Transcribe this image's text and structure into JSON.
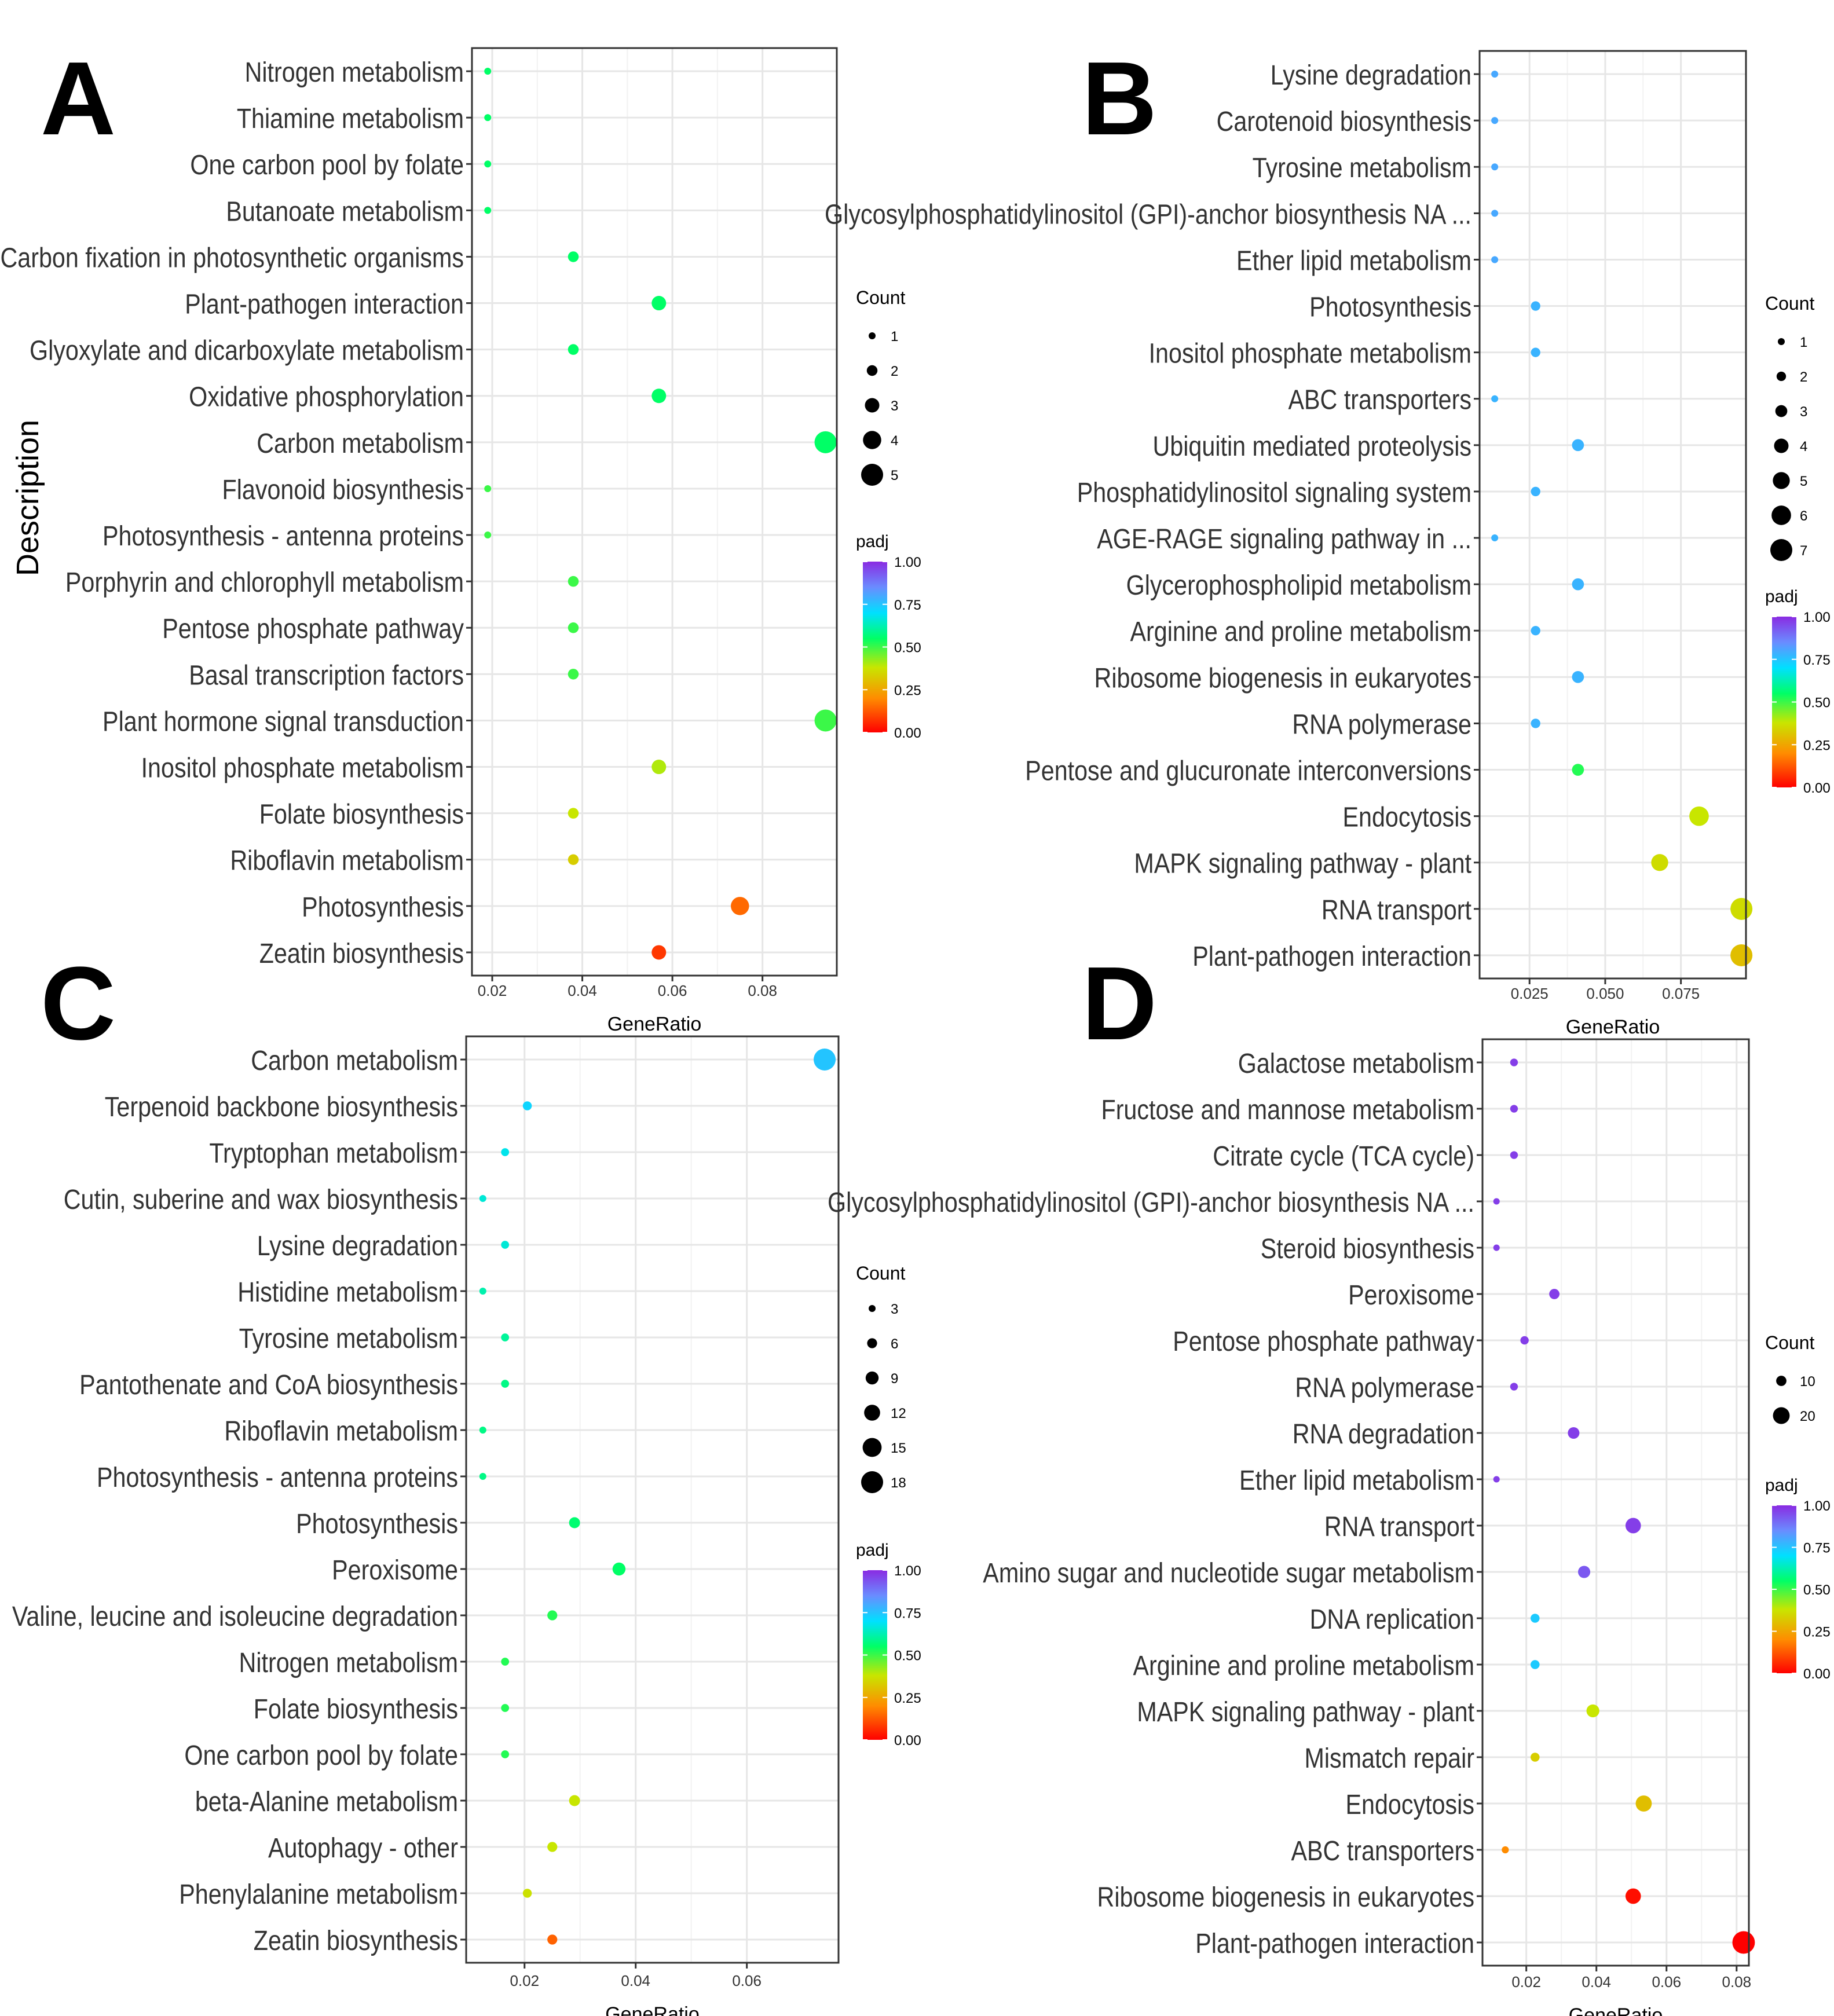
{
  "gradient_colors": [
    "#ff0000",
    "#ff8c00",
    "#c8e600",
    "#00ff66",
    "#00e0ff",
    "#6a8cff",
    "#8a2be2"
  ],
  "ylabel": "Description",
  "chart_data": [
    {
      "panel": "A",
      "type": "scatter",
      "xlabel": "GeneRatio",
      "xlim": [
        0.0155,
        0.0965
      ],
      "xticks": [
        0.02,
        0.04,
        0.06,
        0.08
      ],
      "xtick_labels": [
        "0.02",
        "0.04",
        "0.06",
        "0.08"
      ],
      "count_title": "Count",
      "count_values": [
        1,
        2,
        3,
        4,
        5
      ],
      "count_range": [
        1,
        5
      ],
      "padj_title": "padj",
      "padj_ticks": [
        "1.00",
        "0.75",
        "0.50",
        "0.25",
        "0.00"
      ],
      "points": [
        {
          "term": "Nitrogen metabolism",
          "gene_ratio": 0.019,
          "count": 1,
          "padj": 0.55
        },
        {
          "term": "Thiamine metabolism",
          "gene_ratio": 0.019,
          "count": 1,
          "padj": 0.55
        },
        {
          "term": "One carbon pool by folate",
          "gene_ratio": 0.019,
          "count": 1,
          "padj": 0.55
        },
        {
          "term": "Butanoate metabolism",
          "gene_ratio": 0.019,
          "count": 1,
          "padj": 0.55
        },
        {
          "term": "Carbon fixation in photosynthetic organisms",
          "gene_ratio": 0.038,
          "count": 2,
          "padj": 0.55
        },
        {
          "term": "Plant-pathogen interaction",
          "gene_ratio": 0.057,
          "count": 3,
          "padj": 0.55
        },
        {
          "term": "Glyoxylate and dicarboxylate metabolism",
          "gene_ratio": 0.038,
          "count": 2,
          "padj": 0.55
        },
        {
          "term": "Oxidative phosphorylation",
          "gene_ratio": 0.057,
          "count": 3,
          "padj": 0.55
        },
        {
          "term": "Carbon metabolism",
          "gene_ratio": 0.094,
          "count": 5,
          "padj": 0.55
        },
        {
          "term": "Flavonoid biosynthesis",
          "gene_ratio": 0.019,
          "count": 1,
          "padj": 0.5
        },
        {
          "term": "Photosynthesis - antenna proteins",
          "gene_ratio": 0.019,
          "count": 1,
          "padj": 0.5
        },
        {
          "term": "Porphyrin and chlorophyll metabolism",
          "gene_ratio": 0.038,
          "count": 2,
          "padj": 0.5
        },
        {
          "term": "Pentose phosphate pathway",
          "gene_ratio": 0.038,
          "count": 2,
          "padj": 0.5
        },
        {
          "term": "Basal transcription factors",
          "gene_ratio": 0.038,
          "count": 2,
          "padj": 0.5
        },
        {
          "term": "Plant hormone signal transduction",
          "gene_ratio": 0.094,
          "count": 5,
          "padj": 0.5
        },
        {
          "term": "Inositol phosphate metabolism",
          "gene_ratio": 0.057,
          "count": 3,
          "padj": 0.4
        },
        {
          "term": "Folate biosynthesis",
          "gene_ratio": 0.038,
          "count": 2,
          "padj": 0.38
        },
        {
          "term": "Riboflavin metabolism",
          "gene_ratio": 0.038,
          "count": 2,
          "padj": 0.33
        },
        {
          "term": "Photosynthesis",
          "gene_ratio": 0.075,
          "count": 4,
          "padj": 0.15
        },
        {
          "term": "Zeatin biosynthesis",
          "gene_ratio": 0.057,
          "count": 3,
          "padj": 0.08
        }
      ]
    },
    {
      "panel": "B",
      "type": "scatter",
      "xlabel": "GeneRatio",
      "xlim": [
        0.0085,
        0.0965
      ],
      "xticks": [
        0.025,
        0.05,
        0.075
      ],
      "xtick_labels": [
        "0.025",
        "0.050",
        "0.075"
      ],
      "count_title": "Count",
      "count_values": [
        1,
        2,
        3,
        4,
        5,
        6,
        7
      ],
      "count_range": [
        1,
        7
      ],
      "padj_title": "padj",
      "padj_ticks": [
        "1.00",
        "0.75",
        "0.50",
        "0.25",
        "0.00"
      ],
      "points": [
        {
          "term": "Lysine degradation",
          "gene_ratio": 0.0135,
          "count": 1,
          "padj": 0.8
        },
        {
          "term": "Carotenoid biosynthesis",
          "gene_ratio": 0.0135,
          "count": 1,
          "padj": 0.8
        },
        {
          "term": "Tyrosine metabolism",
          "gene_ratio": 0.0135,
          "count": 1,
          "padj": 0.8
        },
        {
          "term": "Glycosylphosphatidylinositol (GPI)-anchor biosynthesis NA ...",
          "gene_ratio": 0.0135,
          "count": 1,
          "padj": 0.8
        },
        {
          "term": "Ether lipid metabolism",
          "gene_ratio": 0.0135,
          "count": 1,
          "padj": 0.8
        },
        {
          "term": "Photosynthesis",
          "gene_ratio": 0.027,
          "count": 2,
          "padj": 0.78
        },
        {
          "term": "Inositol phosphate metabolism",
          "gene_ratio": 0.027,
          "count": 2,
          "padj": 0.78
        },
        {
          "term": "ABC transporters",
          "gene_ratio": 0.0135,
          "count": 1,
          "padj": 0.78
        },
        {
          "term": "Ubiquitin mediated proteolysis",
          "gene_ratio": 0.041,
          "count": 3,
          "padj": 0.78
        },
        {
          "term": "Phosphatidylinositol signaling system",
          "gene_ratio": 0.027,
          "count": 2,
          "padj": 0.78
        },
        {
          "term": "AGE-RAGE signaling pathway in ...",
          "gene_ratio": 0.0135,
          "count": 1,
          "padj": 0.78
        },
        {
          "term": "Glycerophospholipid metabolism",
          "gene_ratio": 0.041,
          "count": 3,
          "padj": 0.78
        },
        {
          "term": "Arginine and proline metabolism",
          "gene_ratio": 0.027,
          "count": 2,
          "padj": 0.78
        },
        {
          "term": "Ribosome biogenesis in eukaryotes",
          "gene_ratio": 0.041,
          "count": 3,
          "padj": 0.78
        },
        {
          "term": "RNA polymerase",
          "gene_ratio": 0.027,
          "count": 2,
          "padj": 0.78
        },
        {
          "term": "Pentose and glucuronate interconversions",
          "gene_ratio": 0.041,
          "count": 3,
          "padj": 0.52
        },
        {
          "term": "Endocytosis",
          "gene_ratio": 0.081,
          "count": 6,
          "padj": 0.38
        },
        {
          "term": "MAPK signaling pathway - plant",
          "gene_ratio": 0.068,
          "count": 5,
          "padj": 0.36
        },
        {
          "term": "RNA transport",
          "gene_ratio": 0.095,
          "count": 7,
          "padj": 0.36
        },
        {
          "term": "Plant-pathogen interaction",
          "gene_ratio": 0.095,
          "count": 7,
          "padj": 0.3
        }
      ]
    },
    {
      "panel": "C",
      "type": "scatter",
      "xlabel": "GeneRatio",
      "xlim": [
        0.0095,
        0.0765
      ],
      "xticks": [
        0.02,
        0.04,
        0.06
      ],
      "xtick_labels": [
        "0.02",
        "0.04",
        "0.06"
      ],
      "count_title": "Count",
      "count_values": [
        3,
        6,
        9,
        12,
        15,
        18
      ],
      "count_range": [
        3,
        18
      ],
      "padj_title": "padj",
      "padj_ticks": [
        "1.00",
        "0.75",
        "0.50",
        "0.25",
        "0.00"
      ],
      "points": [
        {
          "term": "Carbon metabolism",
          "gene_ratio": 0.074,
          "count": 18,
          "padj": 0.75
        },
        {
          "term": "Terpenoid backbone biosynthesis",
          "gene_ratio": 0.0205,
          "count": 5,
          "padj": 0.72
        },
        {
          "term": "Tryptophan metabolism",
          "gene_ratio": 0.0165,
          "count": 4,
          "padj": 0.68
        },
        {
          "term": "Cutin, suberine and wax biosynthesis",
          "gene_ratio": 0.0125,
          "count": 3,
          "padj": 0.66
        },
        {
          "term": "Lysine degradation",
          "gene_ratio": 0.0165,
          "count": 4,
          "padj": 0.66
        },
        {
          "term": "Histidine metabolism",
          "gene_ratio": 0.0125,
          "count": 3,
          "padj": 0.62
        },
        {
          "term": "Tyrosine metabolism",
          "gene_ratio": 0.0165,
          "count": 4,
          "padj": 0.6
        },
        {
          "term": "Pantothenate and CoA biosynthesis",
          "gene_ratio": 0.0165,
          "count": 4,
          "padj": 0.58
        },
        {
          "term": "Riboflavin metabolism",
          "gene_ratio": 0.0125,
          "count": 3,
          "padj": 0.58
        },
        {
          "term": "Photosynthesis - antenna proteins",
          "gene_ratio": 0.0125,
          "count": 3,
          "padj": 0.58
        },
        {
          "term": "Photosynthesis",
          "gene_ratio": 0.029,
          "count": 7,
          "padj": 0.56
        },
        {
          "term": "Peroxisome",
          "gene_ratio": 0.037,
          "count": 9,
          "padj": 0.55
        },
        {
          "term": "Valine, leucine and isoleucine degradation",
          "gene_ratio": 0.025,
          "count": 6,
          "padj": 0.52
        },
        {
          "term": "Nitrogen metabolism",
          "gene_ratio": 0.0165,
          "count": 4,
          "padj": 0.52
        },
        {
          "term": "Folate biosynthesis",
          "gene_ratio": 0.0165,
          "count": 4,
          "padj": 0.52
        },
        {
          "term": "One carbon pool by folate",
          "gene_ratio": 0.0165,
          "count": 4,
          "padj": 0.52
        },
        {
          "term": "beta-Alanine metabolism",
          "gene_ratio": 0.029,
          "count": 7,
          "padj": 0.38
        },
        {
          "term": "Autophagy - other",
          "gene_ratio": 0.025,
          "count": 6,
          "padj": 0.38
        },
        {
          "term": "Phenylalanine metabolism",
          "gene_ratio": 0.0205,
          "count": 5,
          "padj": 0.37
        },
        {
          "term": "Zeatin biosynthesis",
          "gene_ratio": 0.025,
          "count": 6,
          "padj": 0.14
        }
      ]
    },
    {
      "panel": "D",
      "type": "scatter",
      "xlabel": "GeneRatio",
      "xlim": [
        0.0075,
        0.0835
      ],
      "xticks": [
        0.02,
        0.04,
        0.06,
        0.08
      ],
      "xtick_labels": [
        "0.02",
        "0.04",
        "0.06",
        "0.08"
      ],
      "count_title": "Count",
      "count_values": [
        10,
        20
      ],
      "count_range": [
        3,
        30
      ],
      "padj_title": "padj",
      "padj_ticks": [
        "1.00",
        "0.75",
        "0.50",
        "0.25",
        "0.00"
      ],
      "points": [
        {
          "term": "Galactose metabolism",
          "gene_ratio": 0.0165,
          "count": 6,
          "padj": 0.97
        },
        {
          "term": "Fructose and mannose metabolism",
          "gene_ratio": 0.0165,
          "count": 6,
          "padj": 0.97
        },
        {
          "term": "Citrate cycle (TCA cycle)",
          "gene_ratio": 0.0165,
          "count": 6,
          "padj": 0.97
        },
        {
          "term": "Glycosylphosphatidylinositol (GPI)-anchor biosynthesis NA ...",
          "gene_ratio": 0.0115,
          "count": 4,
          "padj": 0.97
        },
        {
          "term": "Steroid biosynthesis",
          "gene_ratio": 0.0115,
          "count": 4,
          "padj": 0.97
        },
        {
          "term": "Peroxisome",
          "gene_ratio": 0.028,
          "count": 10,
          "padj": 0.97
        },
        {
          "term": "Pentose phosphate pathway",
          "gene_ratio": 0.0195,
          "count": 7,
          "padj": 0.97
        },
        {
          "term": "RNA polymerase",
          "gene_ratio": 0.0165,
          "count": 6,
          "padj": 0.97
        },
        {
          "term": "RNA degradation",
          "gene_ratio": 0.0335,
          "count": 12,
          "padj": 0.97
        },
        {
          "term": "Ether lipid metabolism",
          "gene_ratio": 0.0115,
          "count": 4,
          "padj": 0.97
        },
        {
          "term": "RNA transport",
          "gene_ratio": 0.0505,
          "count": 18,
          "padj": 0.97
        },
        {
          "term": "Amino sugar and nucleotide sugar metabolism",
          "gene_ratio": 0.0365,
          "count": 13,
          "padj": 0.93
        },
        {
          "term": "DNA replication",
          "gene_ratio": 0.0225,
          "count": 8,
          "padj": 0.74
        },
        {
          "term": "Arginine and proline metabolism",
          "gene_ratio": 0.0225,
          "count": 8,
          "padj": 0.74
        },
        {
          "term": "MAPK signaling pathway - plant",
          "gene_ratio": 0.039,
          "count": 14,
          "padj": 0.38
        },
        {
          "term": "Mismatch repair",
          "gene_ratio": 0.0225,
          "count": 8,
          "padj": 0.33
        },
        {
          "term": "Endocytosis",
          "gene_ratio": 0.0535,
          "count": 19,
          "padj": 0.3
        },
        {
          "term": "ABC transporters",
          "gene_ratio": 0.014,
          "count": 5,
          "padj": 0.2
        },
        {
          "term": "Ribosome biogenesis in eukaryotes",
          "gene_ratio": 0.0505,
          "count": 18,
          "padj": 0.02
        },
        {
          "term": "Plant-pathogen interaction",
          "gene_ratio": 0.082,
          "count": 29,
          "padj": 0.0
        }
      ]
    }
  ]
}
